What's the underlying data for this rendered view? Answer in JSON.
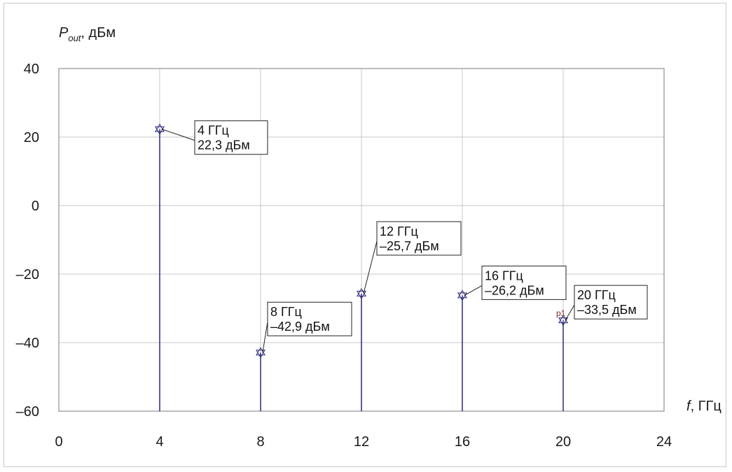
{
  "chart_data": {
    "type": "stem",
    "ylabel": {
      "symbol": "P",
      "subscript": "out",
      "unit": ", дБм"
    },
    "xlabel": {
      "symbol": "f",
      "unit": ", ГГц"
    },
    "xlim": [
      0,
      24
    ],
    "ylim": [
      -60,
      40
    ],
    "xticks": [
      "0",
      "4",
      "8",
      "12",
      "16",
      "20",
      "24"
    ],
    "yticks": [
      "40",
      "20",
      "0",
      "–20",
      "–40",
      "–60"
    ],
    "grid": true,
    "points": [
      {
        "x": 4,
        "y": 22.3,
        "label1": "4 ГГц",
        "label2": "22,3 дБм"
      },
      {
        "x": 8,
        "y": -42.9,
        "label1": "8 ГГц",
        "label2": "–42,9 дБм"
      },
      {
        "x": 12,
        "y": -25.7,
        "label1": "12 ГГц",
        "label2": "–25,7 дБм"
      },
      {
        "x": 16,
        "y": -26.2,
        "label1": "16 ГГц",
        "label2": "–26,2 дБм"
      },
      {
        "x": 20,
        "y": -33.5,
        "label1": "20 ГГц",
        "label2": "–33,5 дБм"
      }
    ],
    "marker_tag": "p1",
    "colors": {
      "stem": "#2a2a7a",
      "marker": "#2a2a7a",
      "grid": "#c8c8c8"
    }
  }
}
